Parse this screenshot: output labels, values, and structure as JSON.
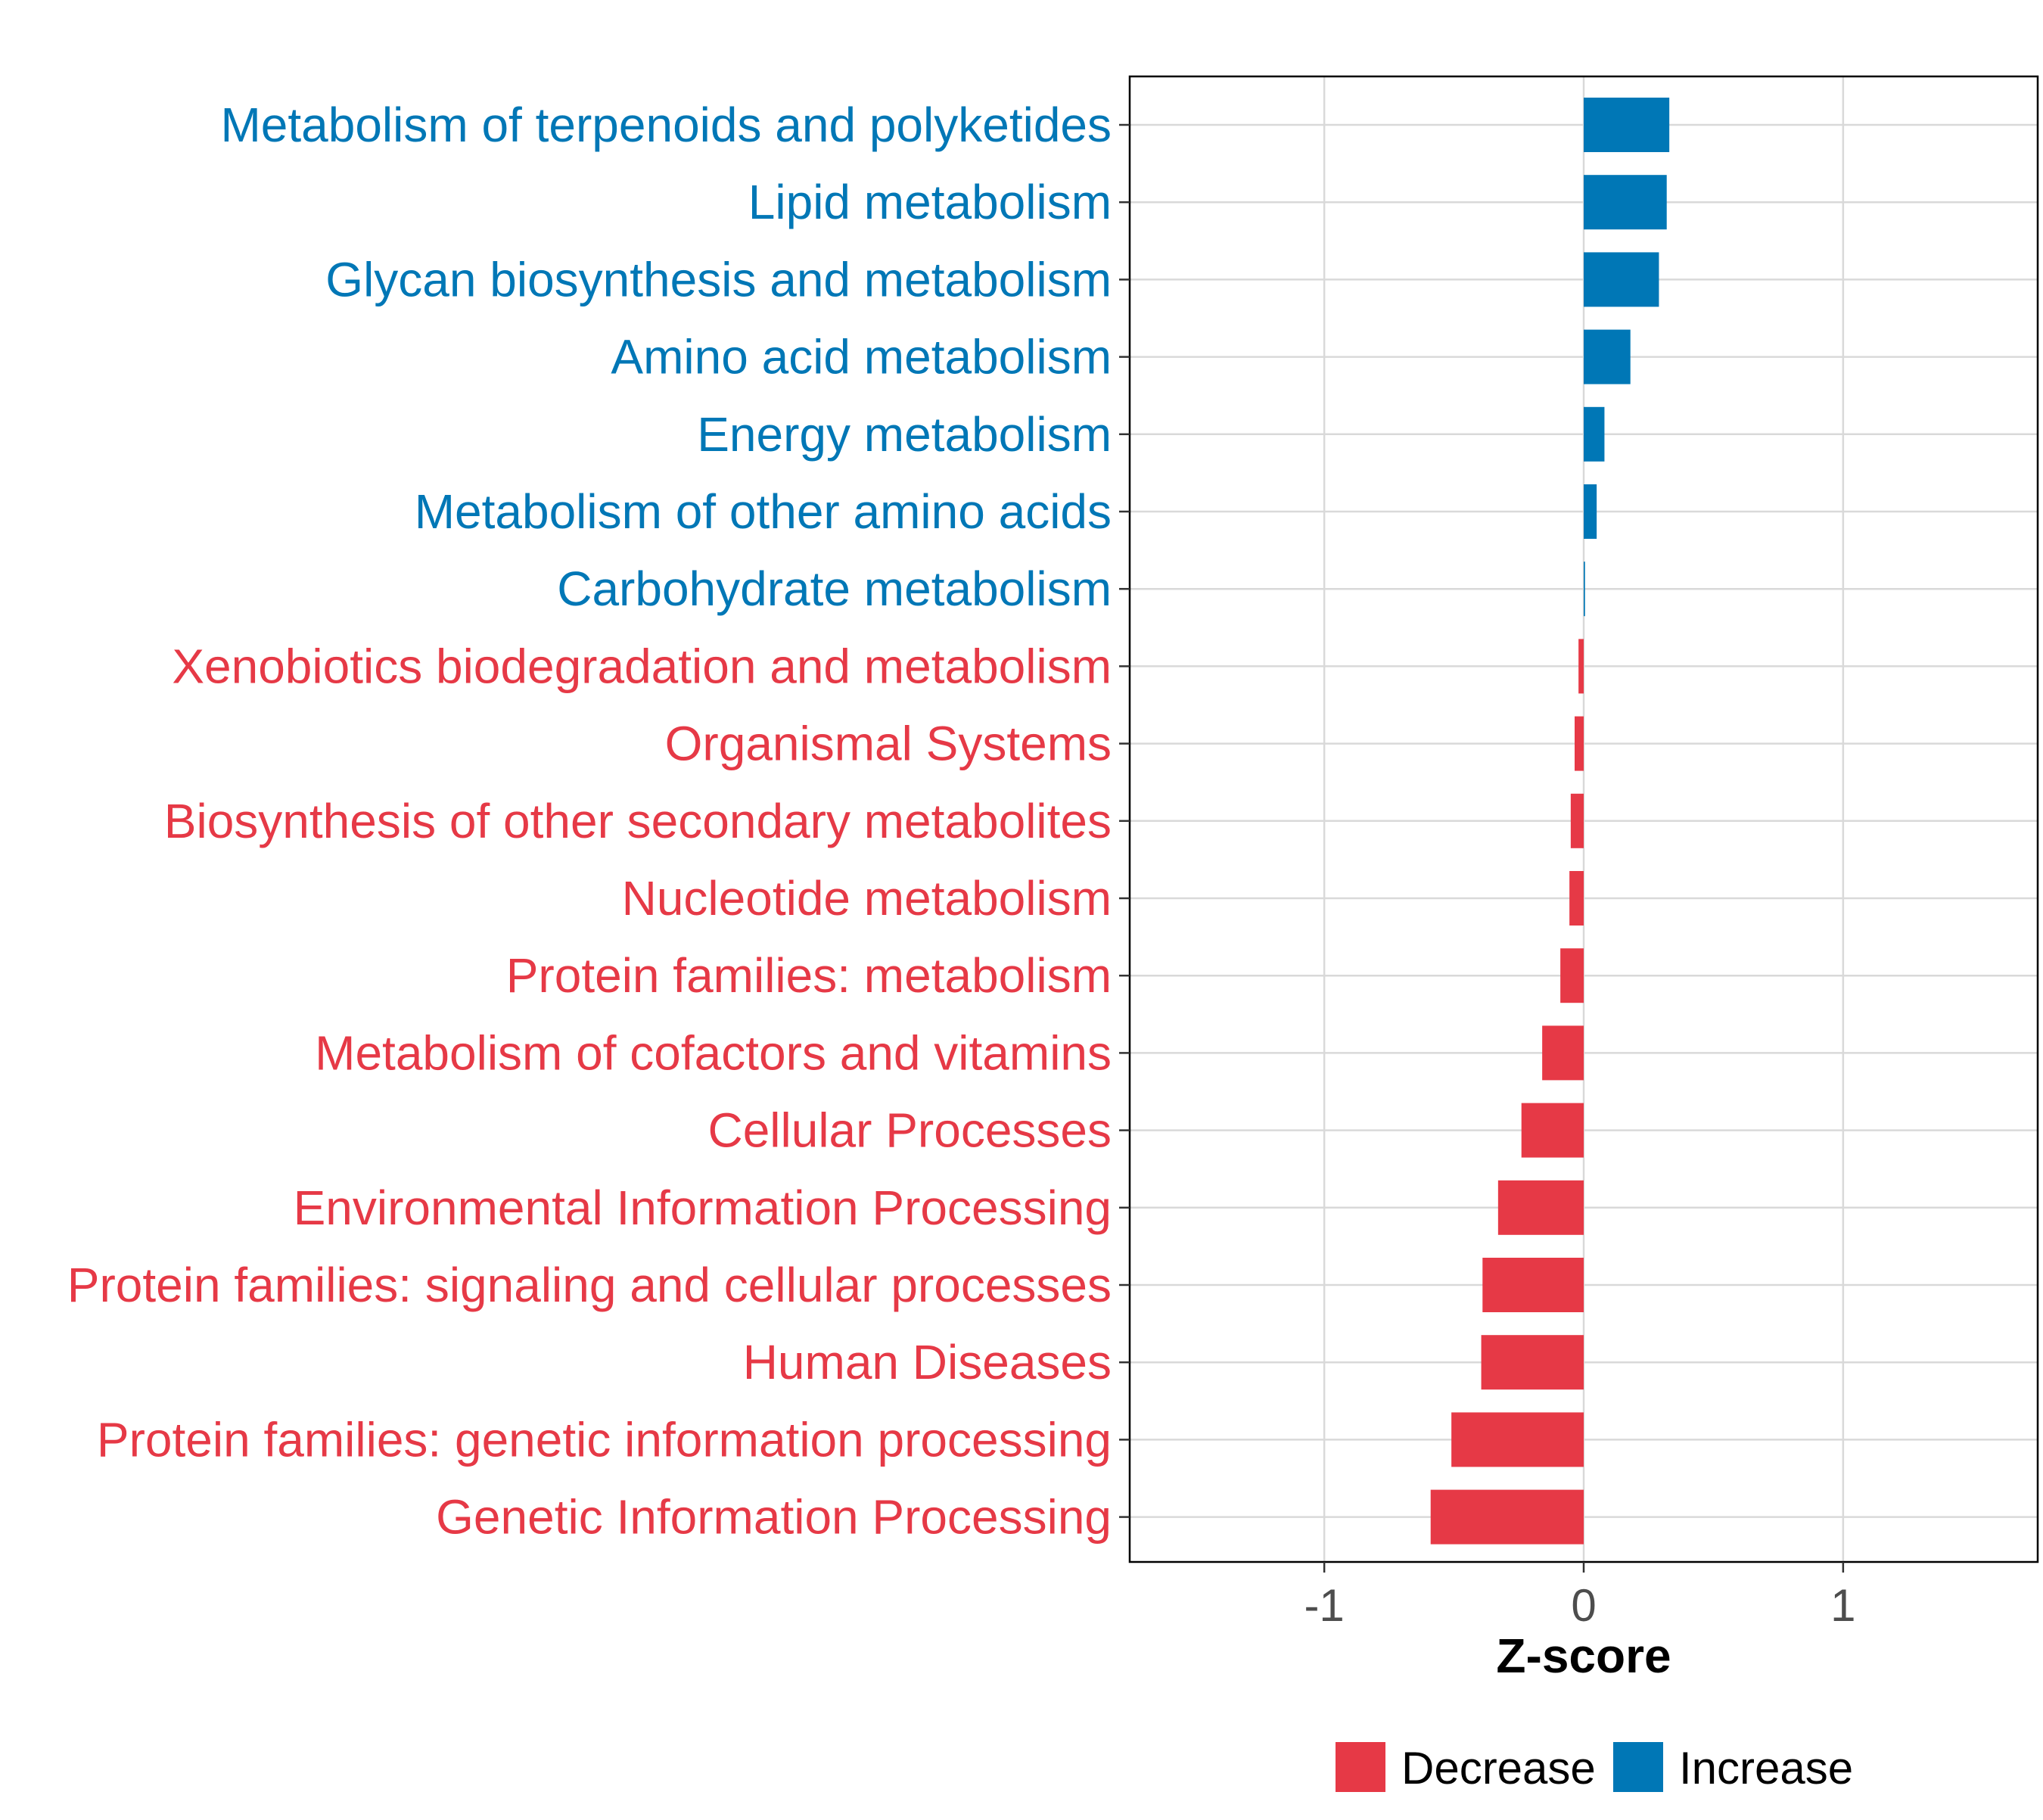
{
  "chart_data": {
    "type": "bar",
    "orientation": "horizontal",
    "title": "",
    "xlabel": "Z-score",
    "ylabel": "",
    "xlim": [
      -1.75,
      1.75
    ],
    "xticks": [
      -1,
      0,
      1
    ],
    "xtick_labels": [
      "-1",
      "0",
      "1"
    ],
    "grid": true,
    "legend_position": "bottom",
    "legend": [
      {
        "name": "Decrease",
        "color": "#E63946"
      },
      {
        "name": "Increase",
        "color": "#0077B6"
      }
    ],
    "categories": [
      "Metabolism of terpenoids and polyketides",
      "Lipid metabolism",
      "Glycan biosynthesis and metabolism",
      "Amino acid metabolism",
      "Energy metabolism",
      "Metabolism of other amino acids",
      "Carbohydrate metabolism",
      "Xenobiotics biodegradation and metabolism",
      "Organismal Systems",
      "Biosynthesis of other secondary metabolites",
      "Nucleotide metabolism",
      "Protein families: metabolism",
      "Metabolism of cofactors and vitamins",
      "Cellular Processes",
      "Environmental Information Processing",
      "Protein families: signaling and cellular processes",
      "Human Diseases",
      "Protein families: genetic information processing",
      "Genetic Information Processing"
    ],
    "values": [
      0.33,
      0.32,
      0.29,
      0.18,
      0.08,
      0.05,
      0.005,
      -0.02,
      -0.035,
      -0.05,
      -0.055,
      -0.09,
      -0.16,
      -0.24,
      -0.33,
      -0.39,
      -0.395,
      -0.51,
      -0.59
    ],
    "series_labels": [
      "Increase",
      "Increase",
      "Increase",
      "Increase",
      "Increase",
      "Increase",
      "Increase",
      "Decrease",
      "Decrease",
      "Decrease",
      "Decrease",
      "Decrease",
      "Decrease",
      "Decrease",
      "Decrease",
      "Decrease",
      "Decrease",
      "Decrease",
      "Decrease"
    ]
  }
}
